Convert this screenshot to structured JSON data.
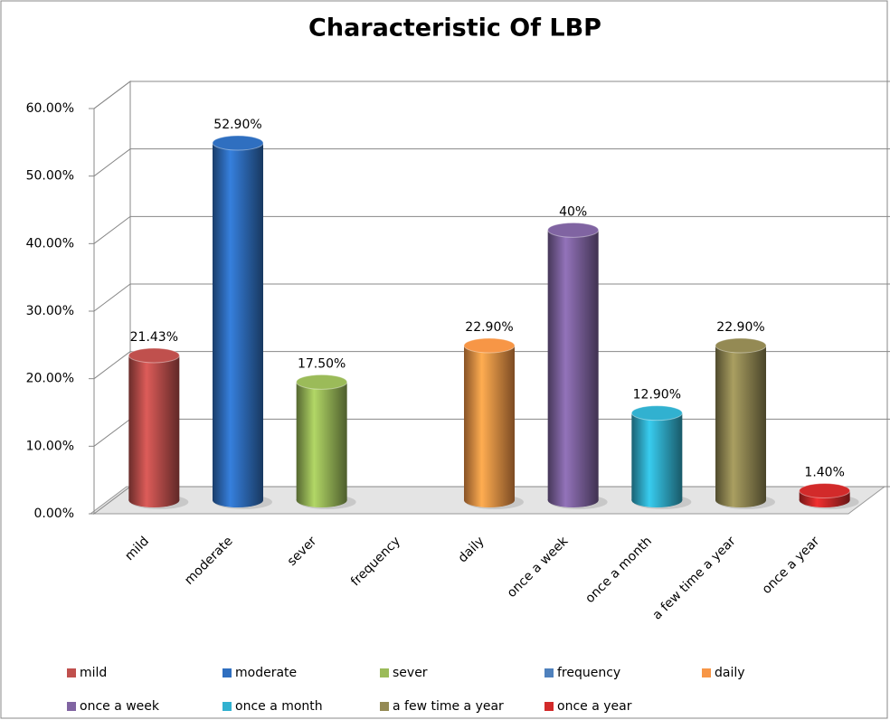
{
  "chart_data": {
    "type": "bar3d",
    "title": "Characteristic Of LBP",
    "categories": [
      "mild",
      "moderate",
      "sever",
      "frequency",
      "daily",
      "once a week",
      "once a month",
      "a few time a year",
      "once a year"
    ],
    "values": [
      21.43,
      52.9,
      17.5,
      null,
      22.9,
      40,
      12.9,
      22.9,
      1.4
    ],
    "value_labels": [
      "21.43%",
      "52.90%",
      "17.50%",
      null,
      "22.90%",
      "40%",
      "12.90%",
      "22.90%",
      "1.40%"
    ],
    "colors": [
      "#c0504d",
      "#2f6fc0",
      "#9bbb59",
      "#4f81bd",
      "#f79646",
      "#8064a2",
      "#31b1d0",
      "#948a54",
      "#d22a2a"
    ],
    "ylim": [
      0,
      60
    ],
    "yticks": [
      {
        "value": 0,
        "label": "0.00%"
      },
      {
        "value": 10,
        "label": "10.00%"
      },
      {
        "value": 20,
        "label": "20.00%"
      },
      {
        "value": 30,
        "label": "30.00%"
      },
      {
        "value": 40,
        "label": "40.00%"
      },
      {
        "value": 50,
        "label": "50.00%"
      },
      {
        "value": 60,
        "label": "60.00%"
      }
    ],
    "grid": true,
    "legend": "bottom"
  }
}
